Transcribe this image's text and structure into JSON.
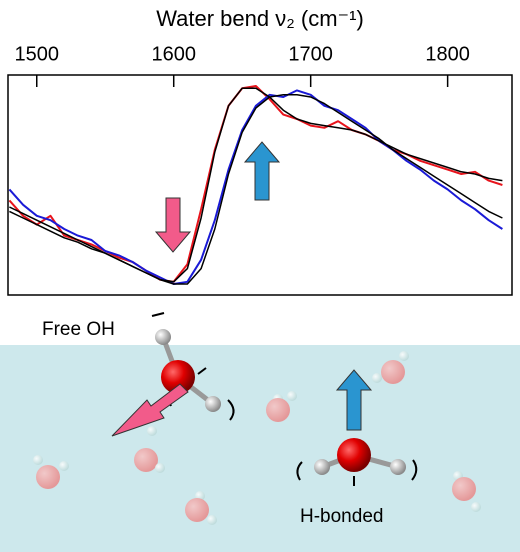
{
  "chart_data": {
    "type": "line",
    "title": "Water bend ν₂ (cm⁻¹)",
    "x": [
      1480,
      1490,
      1500,
      1510,
      1520,
      1530,
      1540,
      1550,
      1560,
      1570,
      1580,
      1590,
      1600,
      1610,
      1620,
      1630,
      1640,
      1650,
      1660,
      1670,
      1680,
      1690,
      1700,
      1710,
      1720,
      1730,
      1740,
      1750,
      1760,
      1770,
      1780,
      1790,
      1800,
      1810,
      1820,
      1830,
      1840
    ],
    "series": [
      {
        "color": "#e8141c",
        "values": [
          0.43,
          0.36,
          0.32,
          0.36,
          0.27,
          0.25,
          0.23,
          0.2,
          0.17,
          0.15,
          0.11,
          0.07,
          0.06,
          0.14,
          0.39,
          0.66,
          0.86,
          0.94,
          0.95,
          0.89,
          0.82,
          0.8,
          0.77,
          0.76,
          0.79,
          0.75,
          0.73,
          0.7,
          0.66,
          0.64,
          0.61,
          0.59,
          0.57,
          0.55,
          0.56,
          0.52,
          0.5
        ]
      },
      {
        "color": "#1a1ad6",
        "values": [
          0.48,
          0.41,
          0.36,
          0.34,
          0.3,
          0.27,
          0.25,
          0.2,
          0.18,
          0.15,
          0.11,
          0.08,
          0.05,
          0.06,
          0.16,
          0.34,
          0.57,
          0.75,
          0.86,
          0.91,
          0.9,
          0.93,
          0.91,
          0.86,
          0.84,
          0.8,
          0.76,
          0.7,
          0.66,
          0.61,
          0.57,
          0.52,
          0.48,
          0.43,
          0.39,
          0.34,
          0.3
        ]
      },
      {
        "color": "#000000",
        "values": [
          0.38,
          0.35,
          0.32,
          0.29,
          0.26,
          0.24,
          0.21,
          0.19,
          0.16,
          0.13,
          0.1,
          0.07,
          0.06,
          0.12,
          0.35,
          0.65,
          0.86,
          0.94,
          0.94,
          0.9,
          0.84,
          0.8,
          0.78,
          0.77,
          0.76,
          0.75,
          0.73,
          0.7,
          0.67,
          0.64,
          0.62,
          0.6,
          0.58,
          0.56,
          0.55,
          0.53,
          0.52
        ]
      },
      {
        "color": "#000000",
        "values": [
          0.4,
          0.37,
          0.34,
          0.31,
          0.28,
          0.25,
          0.22,
          0.19,
          0.16,
          0.13,
          0.1,
          0.07,
          0.05,
          0.05,
          0.12,
          0.3,
          0.55,
          0.74,
          0.85,
          0.9,
          0.91,
          0.91,
          0.9,
          0.87,
          0.83,
          0.79,
          0.75,
          0.71,
          0.66,
          0.62,
          0.58,
          0.54,
          0.5,
          0.46,
          0.42,
          0.38,
          0.35
        ]
      }
    ],
    "xlim": [
      1479,
      1847
    ],
    "xticks": [
      1500,
      1600,
      1700,
      1800
    ],
    "ylim": [
      0,
      1
    ],
    "annotations": [
      "Free OH",
      "H-bonded"
    ]
  }
}
